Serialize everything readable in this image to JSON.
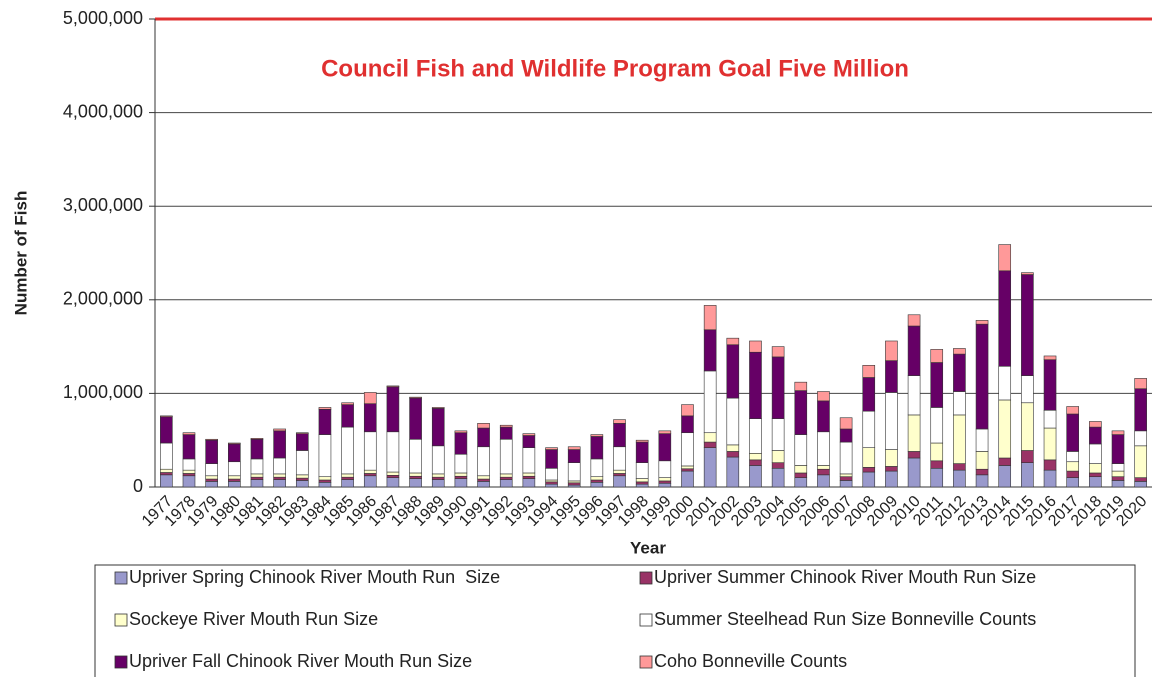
{
  "chart_data": {
    "type": "stacked_bar",
    "y_label": "Number of Fish",
    "x_label": "Year",
    "annotation": "Council Fish and Wildlife Program Goal Five Million",
    "goal": {
      "value": 5000000,
      "color": "#e03030"
    },
    "categories": [
      "1977",
      "1978",
      "1979",
      "1980",
      "1981",
      "1982",
      "1983",
      "1984",
      "1985",
      "1986",
      "1987",
      "1988",
      "1989",
      "1990",
      "1991",
      "1992",
      "1993",
      "1994",
      "1995",
      "1996",
      "1997",
      "1998",
      "1999",
      "2000",
      "2001",
      "2002",
      "2003",
      "2004",
      "2005",
      "2006",
      "2007",
      "2008",
      "2009",
      "2010",
      "2011",
      "2012",
      "2013",
      "2014",
      "2015",
      "2016",
      "2017",
      "2018",
      "2019",
      "2020"
    ],
    "series": [
      {
        "name": "Upriver Spring Chinook River Mouth Run  Size",
        "color": "#9999cc",
        "values": [
          130000,
          120000,
          60000,
          60000,
          80000,
          80000,
          70000,
          50000,
          80000,
          120000,
          100000,
          90000,
          80000,
          90000,
          60000,
          80000,
          90000,
          30000,
          20000,
          50000,
          120000,
          30000,
          40000,
          170000,
          420000,
          320000,
          230000,
          200000,
          100000,
          130000,
          70000,
          160000,
          170000,
          310000,
          200000,
          180000,
          130000,
          230000,
          260000,
          180000,
          100000,
          110000,
          70000,
          60000
        ]
      },
      {
        "name": "Upriver Summer Chinook River Mouth Run Size",
        "color": "#993366",
        "values": [
          25000,
          25000,
          25000,
          25000,
          25000,
          25000,
          25000,
          25000,
          25000,
          25000,
          25000,
          25000,
          25000,
          25000,
          25000,
          25000,
          25000,
          25000,
          25000,
          25000,
          25000,
          25000,
          25000,
          25000,
          60000,
          60000,
          60000,
          60000,
          50000,
          60000,
          40000,
          50000,
          50000,
          70000,
          80000,
          70000,
          60000,
          80000,
          130000,
          110000,
          70000,
          40000,
          40000,
          40000
        ]
      },
      {
        "name": "Sockeye River Mouth Run Size",
        "color": "#ffffcc",
        "values": [
          35000,
          35000,
          35000,
          35000,
          35000,
          35000,
          35000,
          35000,
          35000,
          35000,
          35000,
          35000,
          35000,
          35000,
          35000,
          35000,
          35000,
          20000,
          20000,
          35000,
          35000,
          35000,
          35000,
          30000,
          100000,
          70000,
          70000,
          130000,
          80000,
          40000,
          30000,
          210000,
          180000,
          390000,
          190000,
          520000,
          190000,
          620000,
          510000,
          340000,
          100000,
          100000,
          60000,
          340000
        ]
      },
      {
        "name": "Summer Steelhead Run Size Bonneville Counts",
        "color": "#ffffff",
        "values": [
          280000,
          120000,
          130000,
          150000,
          160000,
          170000,
          260000,
          450000,
          500000,
          410000,
          430000,
          360000,
          300000,
          200000,
          310000,
          370000,
          270000,
          125000,
          195000,
          190000,
          250000,
          170000,
          180000,
          355000,
          660000,
          500000,
          370000,
          340000,
          330000,
          360000,
          340000,
          390000,
          610000,
          420000,
          380000,
          250000,
          240000,
          360000,
          290000,
          190000,
          110000,
          210000,
          80000,
          160000
        ]
      },
      {
        "name": "Upriver Fall Chinook River Mouth Run Size",
        "color": "#660066",
        "values": [
          280000,
          260000,
          250000,
          190000,
          210000,
          290000,
          180000,
          270000,
          240000,
          300000,
          480000,
          440000,
          400000,
          230000,
          200000,
          130000,
          130000,
          200000,
          140000,
          240000,
          250000,
          220000,
          290000,
          180000,
          440000,
          570000,
          710000,
          660000,
          470000,
          330000,
          140000,
          360000,
          340000,
          530000,
          480000,
          400000,
          1120000,
          1020000,
          1080000,
          540000,
          400000,
          180000,
          310000,
          450000
        ]
      },
      {
        "name": "Coho Bonneville Counts",
        "color": "#ff9999",
        "values": [
          10000,
          20000,
          10000,
          10000,
          10000,
          20000,
          10000,
          20000,
          20000,
          120000,
          10000,
          10000,
          10000,
          20000,
          50000,
          20000,
          20000,
          20000,
          30000,
          20000,
          40000,
          20000,
          30000,
          120000,
          260000,
          70000,
          120000,
          110000,
          90000,
          100000,
          120000,
          130000,
          210000,
          120000,
          140000,
          60000,
          40000,
          280000,
          20000,
          40000,
          80000,
          60000,
          40000,
          110000
        ]
      }
    ],
    "ylim": [
      0,
      5000000
    ],
    "yticks": [
      0,
      {
        "value": 1000000,
        "label": "1,000,000"
      },
      {
        "value": 2000000,
        "label": "2,000,000"
      },
      {
        "value": 3000000,
        "label": "3,000,000"
      },
      {
        "value": 4000000,
        "label": "4,000,000"
      },
      {
        "value": 5000000,
        "label": "5,000,000"
      }
    ],
    "grid": true
  }
}
